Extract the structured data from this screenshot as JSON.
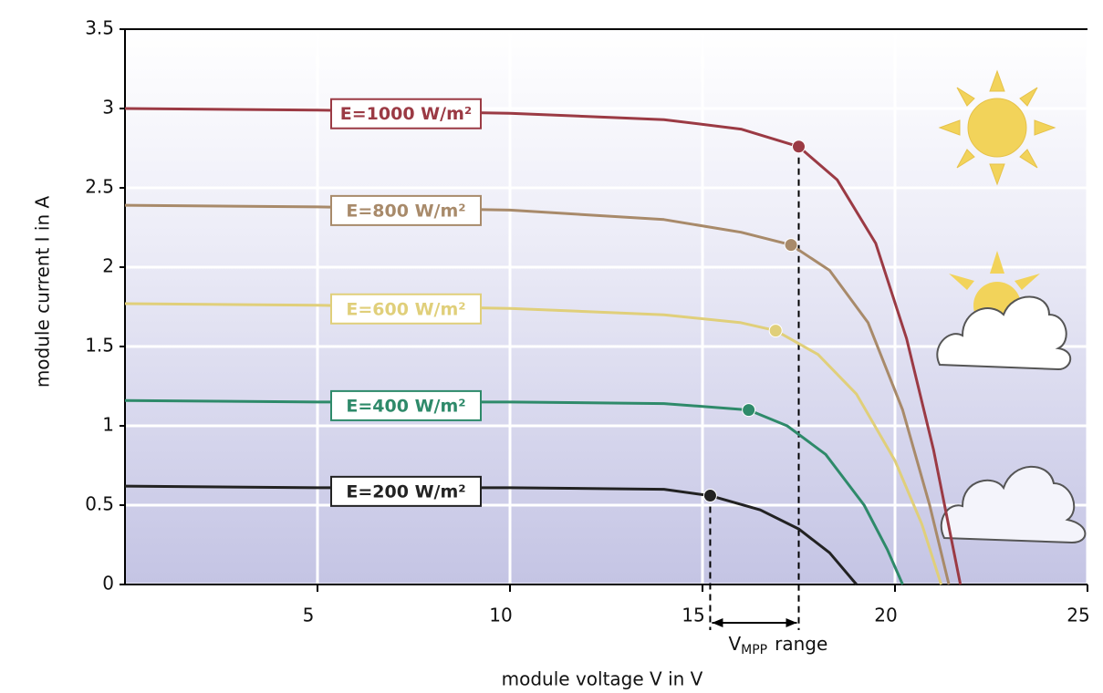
{
  "chart_data": {
    "type": "line",
    "xlabel": "module voltage V in V",
    "ylabel": "module current I in A",
    "xlim": [
      0,
      25
    ],
    "xticks": [
      5,
      10,
      15,
      20,
      25
    ],
    "ylim": [
      0,
      3.5
    ],
    "yticks": [
      0,
      0.5,
      1,
      1.5,
      2,
      2.5,
      3,
      3.5
    ],
    "grid": true,
    "series": [
      {
        "name": "E=1000 W/m²",
        "color": "#9b3a44",
        "x": [
          0,
          5,
          10,
          14,
          16,
          17.5,
          18.5,
          19.5,
          20.3,
          21,
          21.7
        ],
        "values": [
          3.0,
          2.99,
          2.97,
          2.93,
          2.87,
          2.76,
          2.55,
          2.15,
          1.55,
          0.85,
          0
        ],
        "mpp": {
          "x": 17.5,
          "y": 2.76
        }
      },
      {
        "name": "E=800 W/m²",
        "color": "#a88a6a",
        "x": [
          0,
          5,
          10,
          14,
          16,
          17.3,
          18.3,
          19.3,
          20.2,
          20.9,
          21.4
        ],
        "values": [
          2.39,
          2.38,
          2.36,
          2.3,
          2.22,
          2.14,
          1.98,
          1.65,
          1.1,
          0.5,
          0
        ],
        "mpp": {
          "x": 17.3,
          "y": 2.14
        }
      },
      {
        "name": "E=600 W/m²",
        "color": "#e0cf7a",
        "x": [
          0,
          5,
          10,
          14,
          16,
          16.9,
          18,
          19,
          20,
          20.7,
          21.2
        ],
        "values": [
          1.77,
          1.76,
          1.74,
          1.7,
          1.65,
          1.6,
          1.45,
          1.2,
          0.78,
          0.38,
          0
        ],
        "mpp": {
          "x": 16.9,
          "y": 1.6
        }
      },
      {
        "name": "E=400 W/m²",
        "color": "#2e8a6a",
        "x": [
          0,
          5,
          10,
          14,
          16.2,
          17.2,
          18.2,
          19.2,
          19.8,
          20.2
        ],
        "values": [
          1.16,
          1.15,
          1.15,
          1.14,
          1.1,
          1.0,
          0.82,
          0.5,
          0.22,
          0
        ],
        "mpp": {
          "x": 16.2,
          "y": 1.1
        }
      },
      {
        "name": "E=200 W/m²",
        "color": "#222222",
        "x": [
          0,
          5,
          10,
          14,
          15.2,
          16.5,
          17.5,
          18.3,
          19.0
        ],
        "values": [
          0.62,
          0.61,
          0.61,
          0.6,
          0.56,
          0.47,
          0.35,
          0.2,
          0
        ],
        "mpp": {
          "x": 15.2,
          "y": 0.56
        }
      }
    ],
    "vmpp_range": {
      "from": 15.2,
      "to": 17.5,
      "main": "V",
      "sub": "MPP",
      "rest": "range"
    }
  }
}
